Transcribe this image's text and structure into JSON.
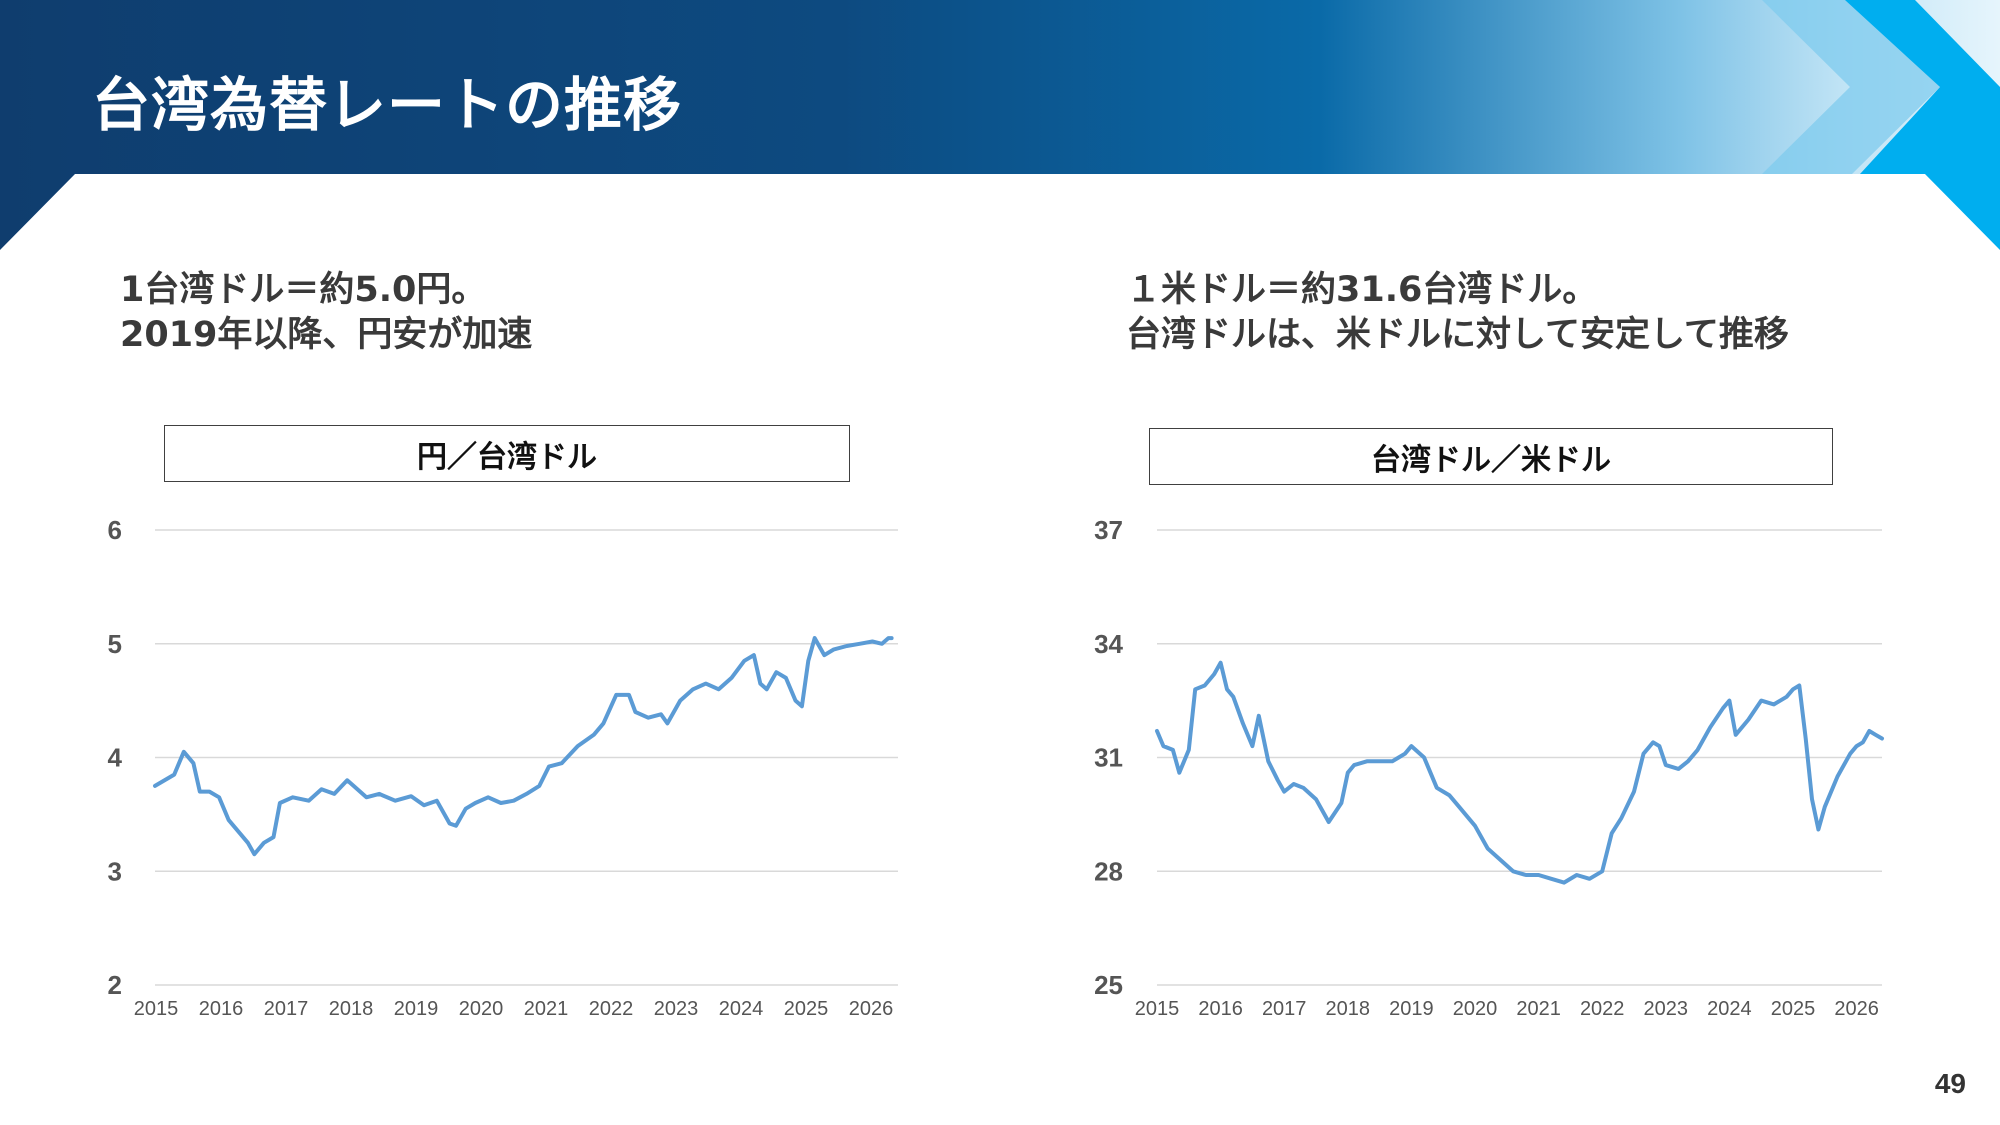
{
  "slide": {
    "title": "台湾為替レートの推移",
    "page_number": "49",
    "accent_dark": "#0f3d6e",
    "accent_light": "#00aeef"
  },
  "left_panel": {
    "headline_line1": "1台湾ドル＝約5.0円。",
    "headline_line2": "2019年以降、円安が加速"
  },
  "right_panel": {
    "headline_line1": "１米ドル＝約31.6台湾ドル。",
    "headline_line2": "台湾ドルは、米ドルに対して安定して推移"
  },
  "chart_data": [
    {
      "type": "line",
      "title": "円／台湾ドル",
      "ylim": [
        2,
        6
      ],
      "yticks": [
        2,
        3,
        4,
        5,
        6
      ],
      "xlim": [
        2015.0,
        2026.6
      ],
      "xticks": [
        "2015",
        "2016",
        "2017",
        "2018",
        "2019",
        "2020",
        "2021",
        "2022",
        "2023",
        "2024",
        "2025",
        "2026"
      ],
      "grid": true,
      "line_color": "#5b9bd5",
      "series": [
        {
          "x": [
            2015.0,
            2015.3,
            2015.45,
            2015.6,
            2015.7,
            2015.85,
            2016.0,
            2016.15,
            2016.3,
            2016.45,
            2016.55,
            2016.7,
            2016.85,
            2016.95,
            2017.15,
            2017.4,
            2017.6,
            2017.8,
            2018.0,
            2018.1,
            2018.3,
            2018.5,
            2018.75,
            2019.0,
            2019.2,
            2019.4,
            2019.6,
            2019.7,
            2019.85,
            2020.0,
            2020.2,
            2020.4,
            2020.6,
            2020.8,
            2021.0,
            2021.15,
            2021.35,
            2021.6,
            2021.85,
            2022.0,
            2022.2,
            2022.4,
            2022.5,
            2022.7,
            2022.9,
            2023.0,
            2023.2,
            2023.4,
            2023.6,
            2023.8,
            2024.0,
            2024.2,
            2024.35,
            2024.45,
            2024.55,
            2024.7,
            2024.85,
            2025.0,
            2025.1,
            2025.2,
            2025.3,
            2025.45,
            2025.6,
            2025.8,
            2026.0,
            2026.2,
            2026.35,
            2026.45,
            2026.5
          ],
          "y": [
            3.75,
            3.85,
            4.05,
            3.95,
            3.7,
            3.7,
            3.65,
            3.45,
            3.35,
            3.25,
            3.15,
            3.25,
            3.3,
            3.6,
            3.65,
            3.62,
            3.72,
            3.68,
            3.8,
            3.75,
            3.65,
            3.68,
            3.62,
            3.66,
            3.58,
            3.62,
            3.42,
            3.4,
            3.55,
            3.6,
            3.65,
            3.6,
            3.62,
            3.68,
            3.75,
            3.92,
            3.95,
            4.1,
            4.2,
            4.3,
            4.55,
            4.55,
            4.4,
            4.35,
            4.38,
            4.3,
            4.5,
            4.6,
            4.65,
            4.6,
            4.7,
            4.85,
            4.9,
            4.65,
            4.6,
            4.75,
            4.7,
            4.5,
            4.45,
            4.85,
            5.05,
            4.9,
            4.95,
            4.98,
            5.0,
            5.02,
            5.0,
            5.05,
            5.05
          ]
        }
      ]
    },
    {
      "type": "line",
      "title": "台湾ドル／米ドル",
      "ylim": [
        25,
        37
      ],
      "yticks": [
        25,
        28,
        31,
        34,
        37
      ],
      "xlim": [
        2015.0,
        2026.4
      ],
      "xticks": [
        "2015",
        "2016",
        "2017",
        "2018",
        "2019",
        "2020",
        "2021",
        "2022",
        "2023",
        "2024",
        "2025",
        "2026"
      ],
      "grid": true,
      "line_color": "#5b9bd5",
      "series": [
        {
          "x": [
            2015.0,
            2015.1,
            2015.25,
            2015.35,
            2015.5,
            2015.6,
            2015.75,
            2015.9,
            2016.0,
            2016.1,
            2016.2,
            2016.35,
            2016.5,
            2016.6,
            2016.75,
            2016.9,
            2017.0,
            2017.15,
            2017.3,
            2017.5,
            2017.7,
            2017.9,
            2018.0,
            2018.1,
            2018.3,
            2018.5,
            2018.7,
            2018.9,
            2019.0,
            2019.2,
            2019.4,
            2019.5,
            2019.6,
            2019.75,
            2019.9,
            2020.0,
            2020.2,
            2020.4,
            2020.6,
            2020.8,
            2021.0,
            2021.2,
            2021.4,
            2021.6,
            2021.8,
            2022.0,
            2022.15,
            2022.3,
            2022.5,
            2022.65,
            2022.8,
            2022.9,
            2023.0,
            2023.2,
            2023.35,
            2023.5,
            2023.7,
            2023.9,
            2024.0,
            2024.1,
            2024.3,
            2024.5,
            2024.7,
            2024.9,
            2025.0,
            2025.1,
            2025.2,
            2025.3,
            2025.4,
            2025.5,
            2025.7,
            2025.9,
            2026.0,
            2026.1,
            2026.2,
            2026.3,
            2026.4
          ],
          "y": [
            31.7,
            31.3,
            31.2,
            30.6,
            31.2,
            32.8,
            32.9,
            33.2,
            33.5,
            32.8,
            32.6,
            31.9,
            31.3,
            32.1,
            30.9,
            30.4,
            30.1,
            30.3,
            30.2,
            29.9,
            29.3,
            29.8,
            30.6,
            30.8,
            30.9,
            30.9,
            30.9,
            31.1,
            31.3,
            31.0,
            30.2,
            30.1,
            30.0,
            29.7,
            29.4,
            29.2,
            28.6,
            28.3,
            28.0,
            27.9,
            27.9,
            27.8,
            27.7,
            27.9,
            27.8,
            28.0,
            29.0,
            29.4,
            30.1,
            31.1,
            31.4,
            31.3,
            30.8,
            30.7,
            30.9,
            31.2,
            31.8,
            32.3,
            32.5,
            31.6,
            32.0,
            32.5,
            32.4,
            32.6,
            32.8,
            32.9,
            31.5,
            29.9,
            29.1,
            29.7,
            30.5,
            31.1,
            31.3,
            31.4,
            31.7,
            31.6,
            31.5
          ]
        }
      ]
    }
  ]
}
